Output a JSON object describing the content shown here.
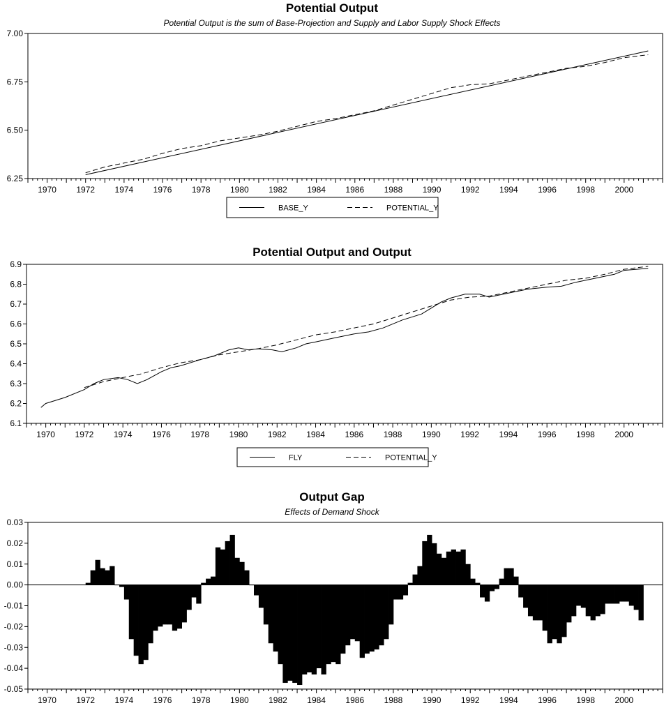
{
  "charts": {
    "top": {
      "title": "Potential Output",
      "subtitle": "Potential Output is the sum of Base-Projection and Supply and Labor Supply Shock Effects"
    },
    "middle": {
      "title": "Potential Output and Output"
    },
    "bottom": {
      "title": "Output Gap",
      "subtitle": "Effects of Demand Shock"
    }
  },
  "chart_data": [
    {
      "type": "line",
      "title": "Potential Output",
      "subtitle": "Potential Output is the sum of Base-Projection and Supply and Labor Supply Shock Effects",
      "xlabel": "",
      "ylabel": "",
      "xlim": [
        1969,
        2002
      ],
      "ylim": [
        6.25,
        7.0
      ],
      "y_ticks": [
        "6.25",
        "6.50",
        "6.75",
        "7.00"
      ],
      "x_ticks": [
        "1970",
        "1972",
        "1974",
        "1976",
        "1978",
        "1980",
        "1982",
        "1984",
        "1986",
        "1988",
        "1990",
        "1992",
        "1994",
        "1996",
        "1998",
        "2000"
      ],
      "grid": false,
      "legend": "bottom-center",
      "series": [
        {
          "name": "BASE_Y",
          "style": "solid",
          "x": [
            1972,
            2001.25
          ],
          "y": [
            6.27,
            6.91
          ]
        },
        {
          "name": "POTENTIAL_Y",
          "style": "dashed",
          "x": [
            1972,
            1973,
            1974,
            1975,
            1976,
            1977,
            1978,
            1979,
            1980,
            1981,
            1982,
            1983,
            1984,
            1985,
            1986,
            1987,
            1988,
            1989,
            1990,
            1991,
            1992,
            1993,
            1994,
            1995,
            1996,
            1997,
            1998,
            1999,
            2000,
            2001.25
          ],
          "y": [
            6.28,
            6.31,
            6.33,
            6.35,
            6.38,
            6.405,
            6.42,
            6.445,
            6.46,
            6.475,
            6.495,
            6.52,
            6.545,
            6.56,
            6.58,
            6.6,
            6.63,
            6.66,
            6.69,
            6.72,
            6.735,
            6.74,
            6.76,
            6.78,
            6.8,
            6.82,
            6.83,
            6.85,
            6.875,
            6.89
          ]
        }
      ]
    },
    {
      "type": "line",
      "title": "Potential Output and Output",
      "xlabel": "",
      "ylabel": "",
      "xlim": [
        1969,
        2002
      ],
      "ylim": [
        6.1,
        6.9
      ],
      "y_ticks": [
        "6.1",
        "6.2",
        "6.3",
        "6.4",
        "6.5",
        "6.6",
        "6.7",
        "6.8",
        "6.9"
      ],
      "x_ticks": [
        "1970",
        "1972",
        "1974",
        "1976",
        "1978",
        "1980",
        "1982",
        "1984",
        "1986",
        "1988",
        "1990",
        "1992",
        "1994",
        "1996",
        "1998",
        "2000"
      ],
      "grid": false,
      "legend": "bottom-center",
      "series": [
        {
          "name": "FLY",
          "style": "solid",
          "x": [
            1969.75,
            1970,
            1971,
            1972,
            1972.5,
            1973,
            1973.75,
            1974.25,
            1974.75,
            1975.25,
            1976,
            1976.5,
            1977,
            1978,
            1978.75,
            1979.5,
            1980,
            1980.5,
            1981,
            1981.75,
            1982.25,
            1983,
            1983.5,
            1984,
            1985,
            1986,
            1986.75,
            1987.5,
            1988.5,
            1989.5,
            1990,
            1990.5,
            1991,
            1991.75,
            1992.5,
            1993,
            1994,
            1995,
            1996,
            1996.75,
            1997.5,
            1998.5,
            1999.5,
            2000,
            2001.25
          ],
          "y": [
            6.18,
            6.2,
            6.23,
            6.27,
            6.3,
            6.32,
            6.33,
            6.32,
            6.3,
            6.32,
            6.36,
            6.38,
            6.39,
            6.42,
            6.44,
            6.47,
            6.48,
            6.47,
            6.475,
            6.47,
            6.46,
            6.48,
            6.5,
            6.51,
            6.53,
            6.55,
            6.56,
            6.58,
            6.62,
            6.65,
            6.68,
            6.71,
            6.73,
            6.75,
            6.75,
            6.735,
            6.755,
            6.775,
            6.785,
            6.79,
            6.81,
            6.83,
            6.85,
            6.87,
            6.88
          ]
        },
        {
          "name": "POTENTIAL_Y",
          "style": "dashed",
          "x": [
            1972,
            1973,
            1974,
            1975,
            1976,
            1977,
            1978,
            1979,
            1980,
            1981,
            1982,
            1983,
            1984,
            1985,
            1986,
            1987,
            1988,
            1989,
            1990,
            1991,
            1992,
            1993,
            1994,
            1995,
            1996,
            1997,
            1998,
            1999,
            2000,
            2001.25
          ],
          "y": [
            6.28,
            6.31,
            6.33,
            6.35,
            6.38,
            6.405,
            6.42,
            6.445,
            6.46,
            6.475,
            6.495,
            6.52,
            6.545,
            6.56,
            6.58,
            6.6,
            6.63,
            6.66,
            6.69,
            6.72,
            6.735,
            6.74,
            6.76,
            6.78,
            6.8,
            6.82,
            6.83,
            6.85,
            6.875,
            6.89
          ]
        }
      ]
    },
    {
      "type": "bar",
      "title": "Output Gap",
      "subtitle": "Effects of Demand Shock",
      "xlabel": "",
      "ylabel": "",
      "xlim": [
        1969,
        2002
      ],
      "ylim": [
        -0.05,
        0.03
      ],
      "y_ticks": [
        "-0.05",
        "-0.04",
        "-0.03",
        "-0.02",
        "-0.01",
        "0.00",
        "0.01",
        "0.02",
        "0.03"
      ],
      "x_ticks": [
        "1970",
        "1972",
        "1974",
        "1976",
        "1978",
        "1980",
        "1982",
        "1984",
        "1986",
        "1988",
        "1990",
        "1992",
        "1994",
        "1996",
        "1998",
        "2000"
      ],
      "grid": false,
      "start_year": 1972,
      "frequency": "quarterly",
      "values": [
        0.001,
        0.007,
        0.012,
        0.008,
        0.007,
        0.009,
        0.0,
        -0.001,
        -0.007,
        -0.026,
        -0.034,
        -0.038,
        -0.036,
        -0.028,
        -0.022,
        -0.02,
        -0.019,
        -0.019,
        -0.022,
        -0.021,
        -0.018,
        -0.012,
        -0.006,
        -0.009,
        0.001,
        0.003,
        0.004,
        0.018,
        0.017,
        0.021,
        0.024,
        0.013,
        0.011,
        0.007,
        0.0,
        -0.005,
        -0.011,
        -0.019,
        -0.028,
        -0.032,
        -0.038,
        -0.047,
        -0.046,
        -0.047,
        -0.048,
        -0.043,
        -0.042,
        -0.043,
        -0.04,
        -0.043,
        -0.038,
        -0.037,
        -0.038,
        -0.033,
        -0.029,
        -0.026,
        -0.027,
        -0.035,
        -0.033,
        -0.032,
        -0.031,
        -0.029,
        -0.026,
        -0.019,
        -0.007,
        -0.007,
        -0.005,
        0.001,
        0.005,
        0.009,
        0.021,
        0.024,
        0.02,
        0.015,
        0.013,
        0.016,
        0.017,
        0.016,
        0.017,
        0.01,
        0.003,
        0.001,
        -0.006,
        -0.008,
        -0.003,
        -0.002,
        0.003,
        0.008,
        0.008,
        0.004,
        -0.006,
        -0.011,
        -0.015,
        -0.017,
        -0.017,
        -0.022,
        -0.028,
        -0.026,
        -0.028,
        -0.025,
        -0.018,
        -0.015,
        -0.01,
        -0.011,
        -0.015,
        -0.017,
        -0.015,
        -0.014,
        -0.009,
        -0.009,
        -0.009,
        -0.008,
        -0.008,
        -0.01,
        -0.012,
        -0.017
      ]
    }
  ]
}
